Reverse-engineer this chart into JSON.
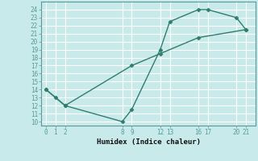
{
  "xlabel": "Humidex (Indice chaleur)",
  "bg_color": "#c8eaea",
  "grid_color": "#ffffff",
  "line_color": "#2e7d6e",
  "marker_color": "#2e7d6e",
  "xlim": [
    -0.5,
    22
  ],
  "ylim": [
    9.5,
    25
  ],
  "xticks": [
    0,
    1,
    2,
    8,
    9,
    12,
    13,
    16,
    17,
    20,
    21
  ],
  "yticks": [
    10,
    11,
    12,
    13,
    14,
    15,
    16,
    17,
    18,
    19,
    20,
    21,
    22,
    23,
    24
  ],
  "line1_x": [
    0,
    1,
    2,
    8,
    9,
    12,
    13,
    16,
    17,
    20,
    21
  ],
  "line1_y": [
    14,
    13,
    12,
    10,
    11.5,
    19,
    22.5,
    24,
    24,
    23,
    21.5
  ],
  "line2_x": [
    0,
    2,
    9,
    12,
    16,
    21
  ],
  "line2_y": [
    14,
    12,
    17,
    18.5,
    20.5,
    21.5
  ]
}
